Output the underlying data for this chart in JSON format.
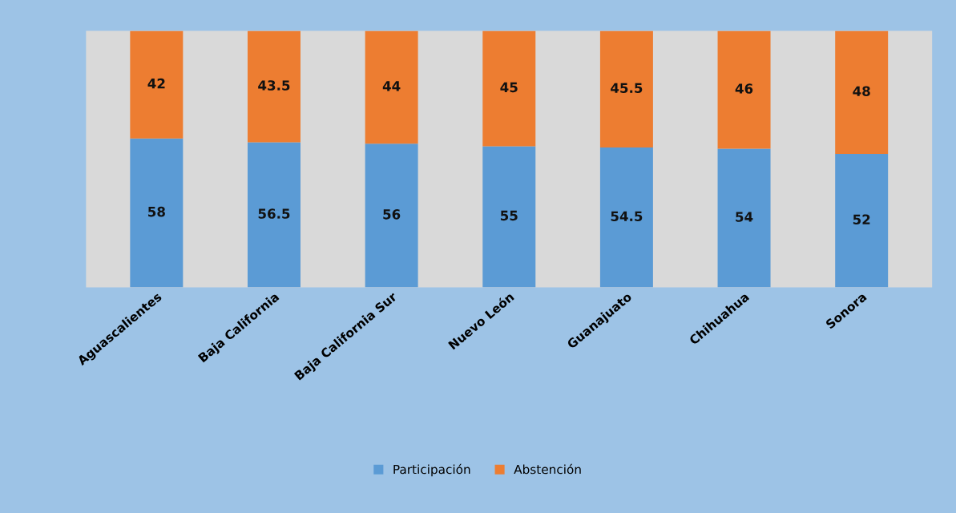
{
  "chart_data": {
    "type": "bar",
    "stacked": true,
    "data_labels": true,
    "legend": "bottom",
    "tick_labels": "x",
    "grid": false,
    "ylim": [
      0,
      100
    ],
    "categories": [
      "Aguascalientes",
      "Baja California",
      "Baja California Sur",
      "Nuevo León",
      "Guanajuato",
      "Chihuahua",
      "Sonora"
    ],
    "series": [
      {
        "name": "Participación",
        "color": "#5b9bd5",
        "values": [
          58,
          56.5,
          56,
          55,
          54.5,
          54,
          52
        ]
      },
      {
        "name": "Abstención",
        "color": "#ed7d31",
        "values": [
          42,
          43.5,
          44,
          45,
          45.5,
          46,
          48
        ]
      }
    ]
  }
}
